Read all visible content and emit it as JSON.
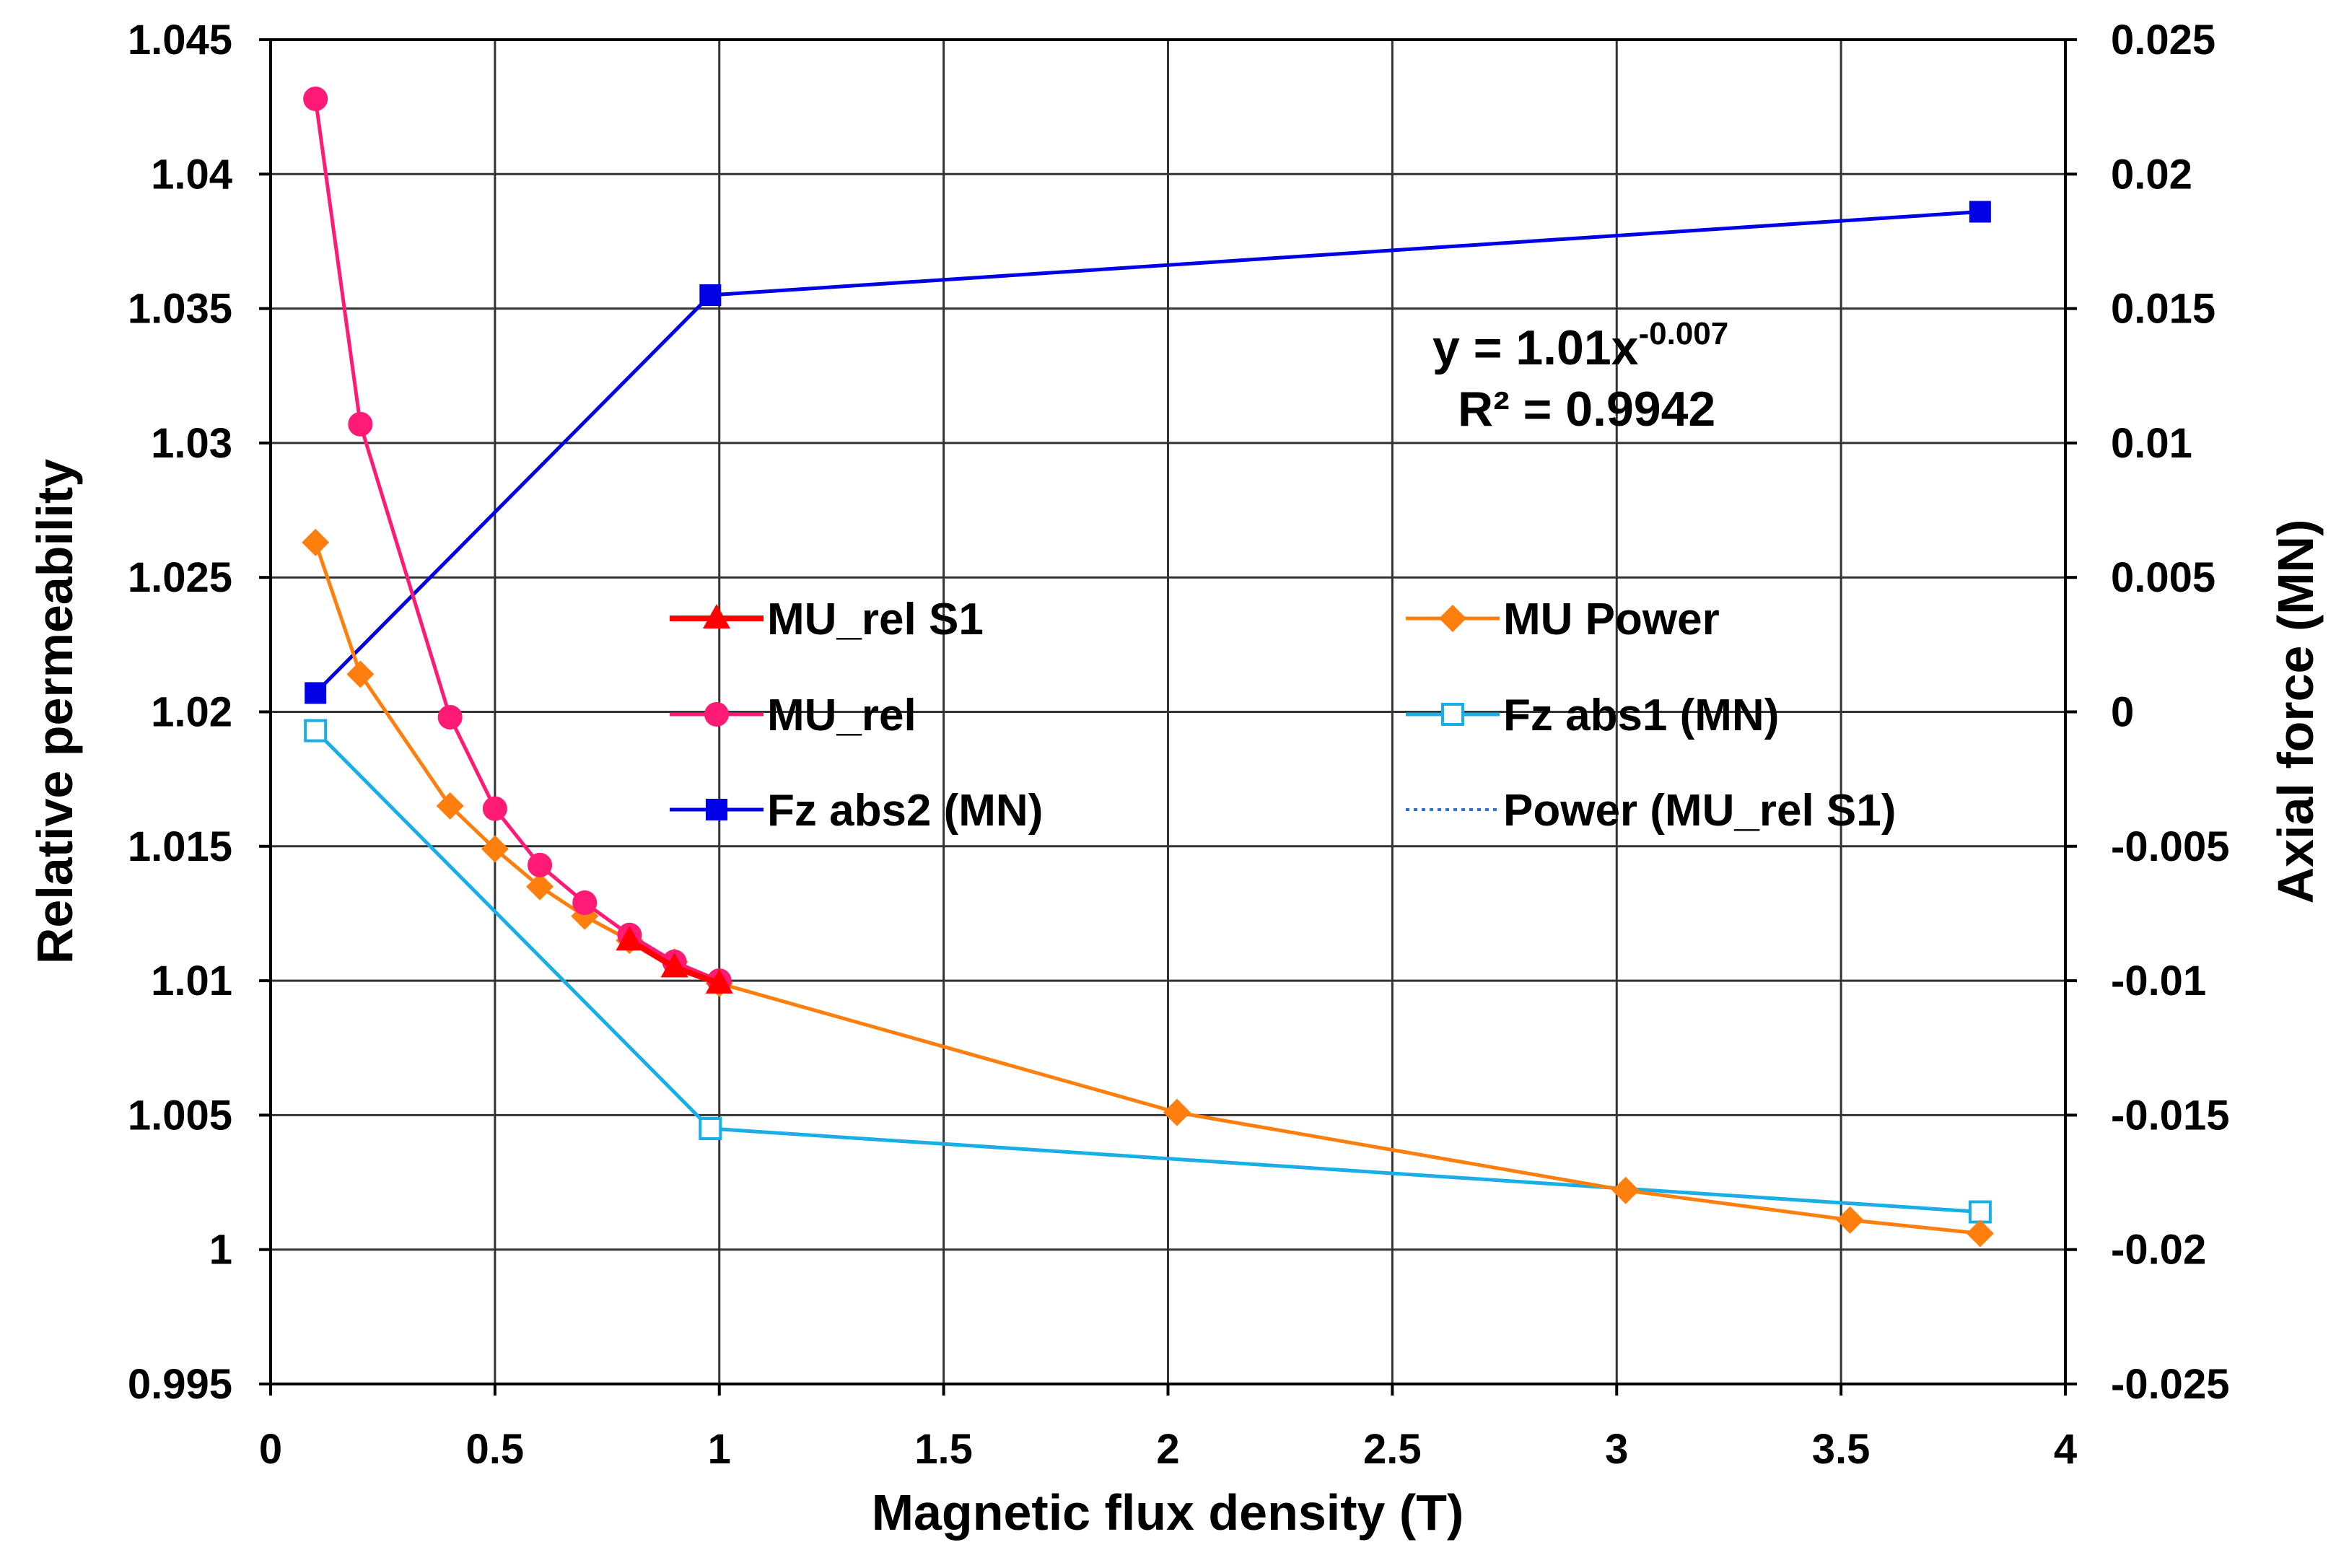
{
  "chart_data": {
    "type": "line",
    "title": "",
    "xlabel": "Magnetic flux density (T)",
    "ylabel": "Relative permeability",
    "y2label": "Axial force (MN)",
    "xlim": [
      0,
      4
    ],
    "ylim": [
      0.995,
      1.045
    ],
    "y2lim": [
      -0.025,
      0.025
    ],
    "grid": true,
    "x_ticks": [
      0,
      0.5,
      1,
      1.5,
      2,
      2.5,
      3,
      3.5,
      4
    ],
    "x_tick_labels": [
      "0",
      "0.5",
      "1",
      "1.5",
      "2",
      "2.5",
      "3",
      "3.5",
      "4"
    ],
    "y_ticks": [
      0.995,
      1,
      1.005,
      1.01,
      1.015,
      1.02,
      1.025,
      1.03,
      1.035,
      1.04,
      1.045
    ],
    "y_tick_labels": [
      "0.995",
      "1",
      "1.005",
      "1.01",
      "1.015",
      "1.02",
      "1.025",
      "1.03",
      "1.035",
      "1.04",
      "1.045"
    ],
    "y2_ticks": [
      -0.025,
      -0.02,
      -0.015,
      -0.01,
      -0.005,
      0,
      0.005,
      0.01,
      0.015,
      0.02,
      0.025
    ],
    "y2_tick_labels": [
      "-0.025",
      "-0.02",
      "-0.015",
      "-0.01",
      "-0.005",
      "0",
      "0.005",
      "0.01",
      "0.015",
      "0.02",
      "0.025"
    ],
    "series": [
      {
        "name": "MU_rel S1",
        "axis": "left",
        "color": "#ff0000",
        "marker": "triangle",
        "x": [
          0.8,
          0.9,
          1.0
        ],
        "y": [
          1.0115,
          1.0105,
          1.0099
        ]
      },
      {
        "name": "MU_rel",
        "axis": "left",
        "color": "#ff1a75",
        "marker": "circle",
        "x": [
          0.1,
          0.2,
          0.4,
          0.5,
          0.6,
          0.7,
          0.8,
          0.9,
          1.0
        ],
        "y": [
          1.0428,
          1.0307,
          1.0198,
          1.0164,
          1.0143,
          1.0129,
          1.0117,
          1.0107,
          1.01
        ]
      },
      {
        "name": "Fz abs2 (MN)",
        "axis": "right",
        "color": "#0000e6",
        "marker": "square",
        "x": [
          0.1,
          0.98,
          3.81
        ],
        "y": [
          0.0007,
          0.0155,
          0.0186
        ]
      },
      {
        "name": "MU Power",
        "axis": "left",
        "color": "#ff7f0e",
        "marker": "diamond",
        "x": [
          0.1,
          0.2,
          0.4,
          0.5,
          0.6,
          0.7,
          0.8,
          0.9,
          1.0,
          2.02,
          3.02,
          3.52,
          3.81
        ],
        "y": [
          1.0263,
          1.0214,
          1.0165,
          1.0149,
          1.0135,
          1.0124,
          1.0115,
          1.0107,
          1.0099,
          1.0051,
          1.0022,
          1.0011,
          1.0006
        ]
      },
      {
        "name": "Fz abs1 (MN)",
        "axis": "right",
        "color": "#1aaee6",
        "marker": "square-open",
        "x": [
          0.1,
          0.98,
          3.81
        ],
        "y": [
          -0.0007,
          -0.0155,
          -0.0186
        ]
      },
      {
        "name": "Power (MU_rel S1)",
        "axis": "left",
        "color": "#2f6fd6",
        "marker": "dotted-line",
        "x": [],
        "y": []
      }
    ],
    "annotations": {
      "equation_base": "y = 1.01x",
      "equation_exponent": "-0.007",
      "r_squared": "R² = 0.9942"
    }
  }
}
